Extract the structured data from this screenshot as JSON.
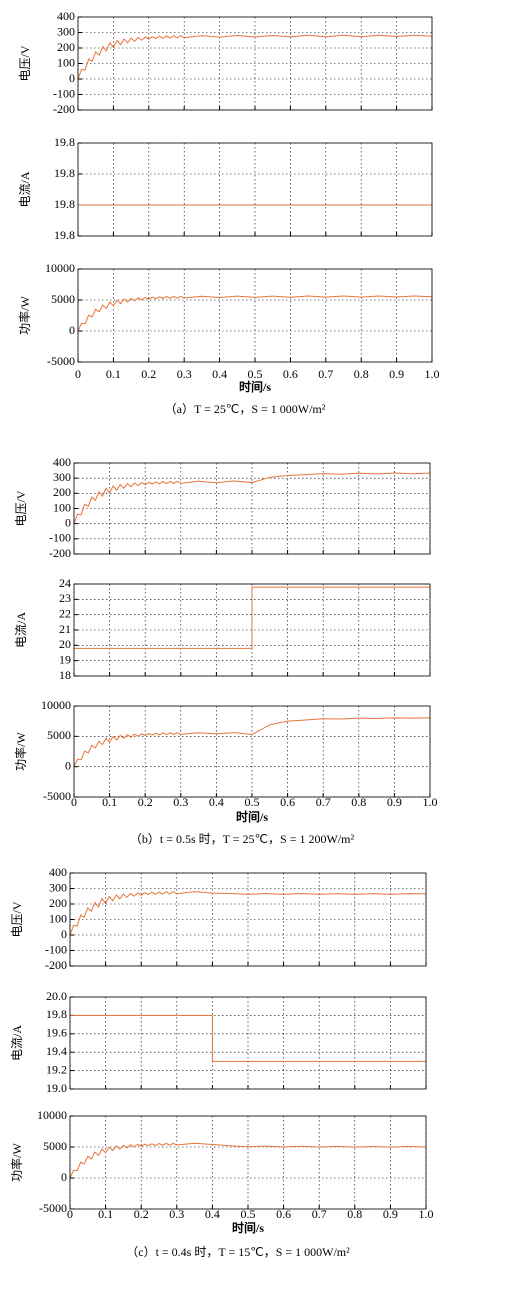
{
  "chart_data": [
    {
      "type": "line",
      "ylabel": "电压/V",
      "ylim": [
        -200,
        400
      ],
      "yticks": [
        -200,
        -100,
        0,
        100,
        200,
        300,
        400
      ],
      "xlim": [
        0,
        1
      ],
      "xticks": [
        0,
        0.1,
        0.2,
        0.3,
        0.4,
        0.5,
        0.6,
        0.7,
        0.8,
        0.9,
        {
          "value": 1,
          "label": "1.0"
        }
      ],
      "grid": true,
      "color": "#e8743b",
      "x": [
        0,
        0.01,
        0.02,
        0.03,
        0.04,
        0.05,
        0.06,
        0.07,
        0.08,
        0.09,
        0.1,
        0.11,
        0.12,
        0.13,
        0.14,
        0.15,
        0.16,
        0.17,
        0.18,
        0.19,
        0.2,
        0.21,
        0.22,
        0.23,
        0.24,
        0.25,
        0.26,
        0.27,
        0.28,
        0.29,
        0.3,
        0.35,
        0.4,
        0.45,
        0.5,
        0.55,
        0.6,
        0.65,
        0.7,
        0.75,
        0.8,
        0.85,
        0.9,
        0.95,
        1
      ],
      "values": [
        0,
        62,
        58,
        128,
        114,
        175,
        154,
        209,
        182,
        234,
        203,
        248,
        221,
        258,
        233,
        264,
        243,
        268,
        251,
        271,
        257,
        273,
        261,
        276,
        262,
        278,
        264,
        279,
        265,
        280,
        266,
        280,
        270,
        281,
        271,
        281,
        272,
        282,
        273,
        282,
        273,
        282,
        274,
        282,
        276
      ]
    },
    {
      "type": "line",
      "ylabel": "电流/A",
      "ylim": [
        19.795,
        19.81
      ],
      "yticks": [
        {
          "value": 19.795,
          "label": "19.8"
        },
        {
          "value": 19.8,
          "label": "19.8"
        },
        {
          "value": 19.805,
          "label": "19.8"
        },
        {
          "value": 19.81,
          "label": "19.8"
        }
      ],
      "xlim": [
        0,
        1
      ],
      "xticks": [
        0,
        0.1,
        0.2,
        0.3,
        0.4,
        0.5,
        0.6,
        0.7,
        0.8,
        0.9,
        {
          "value": 1,
          "label": "1.0"
        }
      ],
      "grid": true,
      "color": "#e8743b",
      "x": [
        0,
        1
      ],
      "values": [
        19.8,
        19.8
      ]
    },
    {
      "type": "line",
      "ylabel": "功率/W",
      "xlabel": "时间/s",
      "caption": "（a）T = 25℃，S = 1 000W/m²",
      "ylim": [
        -5000,
        10000
      ],
      "yticks": [
        -5000,
        0,
        5000,
        10000
      ],
      "xlim": [
        0,
        1
      ],
      "xticks": [
        0,
        0.1,
        0.2,
        0.3,
        0.4,
        0.5,
        0.6,
        0.7,
        0.8,
        0.9,
        {
          "value": 1,
          "label": "1.0"
        }
      ],
      "grid": true,
      "color": "#e8743b",
      "x": [
        0,
        0.01,
        0.02,
        0.03,
        0.04,
        0.05,
        0.06,
        0.07,
        0.08,
        0.09,
        0.1,
        0.11,
        0.12,
        0.13,
        0.14,
        0.15,
        0.16,
        0.17,
        0.18,
        0.19,
        0.2,
        0.21,
        0.22,
        0.23,
        0.24,
        0.25,
        0.26,
        0.27,
        0.28,
        0.29,
        0.3,
        0.35,
        0.4,
        0.45,
        0.5,
        0.55,
        0.6,
        0.65,
        0.7,
        0.75,
        0.8,
        0.85,
        0.9,
        0.95,
        1
      ],
      "values": [
        0,
        1240,
        1160,
        2560,
        2280,
        3500,
        3080,
        4180,
        3640,
        4680,
        4060,
        4960,
        4420,
        5160,
        4660,
        5280,
        4860,
        5360,
        5020,
        5420,
        5140,
        5460,
        5220,
        5520,
        5240,
        5560,
        5280,
        5580,
        5300,
        5600,
        5320,
        5600,
        5400,
        5620,
        5420,
        5620,
        5440,
        5640,
        5460,
        5640,
        5460,
        5640,
        5480,
        5640,
        5520
      ]
    },
    {
      "type": "line",
      "ylabel": "电压/V",
      "ylim": [
        -200,
        400
      ],
      "yticks": [
        -200,
        -100,
        0,
        100,
        200,
        300,
        400
      ],
      "xlim": [
        0,
        1
      ],
      "xticks": [
        0,
        0.1,
        0.2,
        0.3,
        0.4,
        0.5,
        0.6,
        0.7,
        0.8,
        0.9,
        {
          "value": 1,
          "label": "1.0"
        }
      ],
      "grid": true,
      "color": "#e8743b",
      "x": [
        0,
        0.01,
        0.02,
        0.03,
        0.04,
        0.05,
        0.06,
        0.07,
        0.08,
        0.09,
        0.1,
        0.11,
        0.12,
        0.13,
        0.14,
        0.15,
        0.16,
        0.17,
        0.18,
        0.19,
        0.2,
        0.21,
        0.22,
        0.23,
        0.24,
        0.25,
        0.26,
        0.27,
        0.28,
        0.29,
        0.3,
        0.35,
        0.4,
        0.45,
        0.5,
        0.55,
        0.6,
        0.65,
        0.7,
        0.75,
        0.8,
        0.85,
        0.9,
        0.95,
        1
      ],
      "values": [
        0,
        62,
        58,
        128,
        114,
        175,
        154,
        209,
        182,
        234,
        203,
        248,
        221,
        258,
        233,
        264,
        243,
        268,
        251,
        271,
        257,
        273,
        261,
        276,
        262,
        278,
        264,
        279,
        265,
        280,
        266,
        280,
        270,
        281,
        271,
        305,
        318,
        323,
        330,
        326,
        333,
        328,
        334,
        329,
        333
      ]
    },
    {
      "type": "line",
      "ylabel": "电流/A",
      "ylim": [
        18,
        24
      ],
      "yticks": [
        18,
        19,
        20,
        21,
        22,
        23,
        24
      ],
      "xlim": [
        0,
        1
      ],
      "xticks": [
        0,
        0.1,
        0.2,
        0.3,
        0.4,
        0.5,
        0.6,
        0.7,
        0.8,
        0.9,
        {
          "value": 1,
          "label": "1.0"
        }
      ],
      "grid": true,
      "color": "#e8743b",
      "x": [
        0,
        0.5,
        0.5,
        1
      ],
      "values": [
        19.8,
        19.8,
        23.8,
        23.8
      ]
    },
    {
      "type": "line",
      "ylabel": "功率/W",
      "xlabel": "时间/s",
      "caption": "（b）t = 0.5s 时，T = 25℃，S = 1 200W/m²",
      "ylim": [
        -5000,
        10000
      ],
      "yticks": [
        -5000,
        0,
        5000,
        10000
      ],
      "xlim": [
        0,
        1
      ],
      "xticks": [
        0,
        0.1,
        0.2,
        0.3,
        0.4,
        0.5,
        0.6,
        0.7,
        0.8,
        0.9,
        {
          "value": 1,
          "label": "1.0"
        }
      ],
      "grid": true,
      "color": "#e8743b",
      "x": [
        0,
        0.01,
        0.02,
        0.03,
        0.04,
        0.05,
        0.06,
        0.07,
        0.08,
        0.09,
        0.1,
        0.11,
        0.12,
        0.13,
        0.14,
        0.15,
        0.16,
        0.17,
        0.18,
        0.19,
        0.2,
        0.21,
        0.22,
        0.23,
        0.24,
        0.25,
        0.26,
        0.27,
        0.28,
        0.29,
        0.3,
        0.35,
        0.4,
        0.45,
        0.5,
        0.55,
        0.6,
        0.65,
        0.7,
        0.75,
        0.8,
        0.85,
        0.9,
        0.95,
        1
      ],
      "values": [
        0,
        1240,
        1160,
        2560,
        2280,
        3500,
        3080,
        4180,
        3640,
        4680,
        4060,
        4960,
        4420,
        5160,
        4660,
        5280,
        4860,
        5360,
        5020,
        5420,
        5140,
        5460,
        5220,
        5520,
        5240,
        5560,
        5280,
        5580,
        5300,
        5600,
        5320,
        5600,
        5400,
        5620,
        5300,
        6900,
        7500,
        7700,
        7900,
        7850,
        8000,
        7950,
        8050,
        8000,
        8050
      ]
    },
    {
      "type": "line",
      "ylabel": "电压/V",
      "ylim": [
        -200,
        400
      ],
      "yticks": [
        -200,
        -100,
        0,
        100,
        200,
        300,
        400
      ],
      "xlim": [
        0,
        1
      ],
      "xticks": [
        0,
        0.1,
        0.2,
        0.3,
        0.4,
        0.5,
        0.6,
        0.7,
        0.8,
        0.9,
        {
          "value": 1,
          "label": "1.0"
        }
      ],
      "grid": true,
      "color": "#e8743b",
      "x": [
        0,
        0.01,
        0.02,
        0.03,
        0.04,
        0.05,
        0.06,
        0.07,
        0.08,
        0.09,
        0.1,
        0.11,
        0.12,
        0.13,
        0.14,
        0.15,
        0.16,
        0.17,
        0.18,
        0.19,
        0.2,
        0.21,
        0.22,
        0.23,
        0.24,
        0.25,
        0.26,
        0.27,
        0.28,
        0.29,
        0.3,
        0.35,
        0.4,
        0.45,
        0.5,
        0.55,
        0.6,
        0.65,
        0.7,
        0.75,
        0.8,
        0.85,
        0.9,
        0.95,
        1
      ],
      "values": [
        0,
        62,
        58,
        128,
        114,
        175,
        154,
        209,
        182,
        234,
        203,
        248,
        221,
        258,
        233,
        264,
        243,
        268,
        251,
        271,
        257,
        273,
        261,
        276,
        262,
        278,
        264,
        279,
        265,
        280,
        266,
        280,
        270,
        268,
        262,
        268,
        262,
        268,
        262,
        267,
        262,
        267,
        262,
        267,
        265
      ]
    },
    {
      "type": "line",
      "ylabel": "电流/A",
      "ylim": [
        19,
        20
      ],
      "yticks": [
        {
          "value": 19,
          "label": "19.0"
        },
        19.2,
        19.4,
        19.6,
        19.8,
        {
          "value": 20,
          "label": "20.0"
        }
      ],
      "xlim": [
        0,
        1
      ],
      "xticks": [
        0,
        0.1,
        0.2,
        0.3,
        0.4,
        0.5,
        0.6,
        0.7,
        0.8,
        0.9,
        {
          "value": 1,
          "label": "1.0"
        }
      ],
      "grid": true,
      "color": "#e8743b",
      "x": [
        0,
        0.4,
        0.4,
        1
      ],
      "values": [
        19.8,
        19.8,
        19.3,
        19.3
      ]
    },
    {
      "type": "line",
      "ylabel": "功率/W",
      "xlabel": "时间/s",
      "caption": "（c）t = 0.4s 时，T = 15℃，S = 1 000W/m²",
      "ylim": [
        -5000,
        10000
      ],
      "yticks": [
        -5000,
        0,
        5000,
        10000
      ],
      "xlim": [
        0,
        1
      ],
      "xticks": [
        0,
        0.1,
        0.2,
        0.3,
        0.4,
        0.5,
        0.6,
        0.7,
        0.8,
        0.9,
        {
          "value": 1,
          "label": "1.0"
        }
      ],
      "grid": true,
      "color": "#e8743b",
      "x": [
        0,
        0.01,
        0.02,
        0.03,
        0.04,
        0.05,
        0.06,
        0.07,
        0.08,
        0.09,
        0.1,
        0.11,
        0.12,
        0.13,
        0.14,
        0.15,
        0.16,
        0.17,
        0.18,
        0.19,
        0.2,
        0.21,
        0.22,
        0.23,
        0.24,
        0.25,
        0.26,
        0.27,
        0.28,
        0.29,
        0.3,
        0.35,
        0.4,
        0.45,
        0.5,
        0.55,
        0.6,
        0.65,
        0.7,
        0.75,
        0.8,
        0.85,
        0.9,
        0.95,
        1
      ],
      "values": [
        0,
        1240,
        1160,
        2560,
        2280,
        3500,
        3080,
        4180,
        3640,
        4680,
        4060,
        4960,
        4420,
        5160,
        4660,
        5280,
        4860,
        5360,
        5020,
        5420,
        5140,
        5460,
        5220,
        5520,
        5240,
        5560,
        5280,
        5580,
        5300,
        5600,
        5320,
        5600,
        5400,
        5200,
        5050,
        5150,
        5000,
        5120,
        5000,
        5100,
        4980,
        5080,
        4980,
        5080,
        5000
      ]
    }
  ]
}
